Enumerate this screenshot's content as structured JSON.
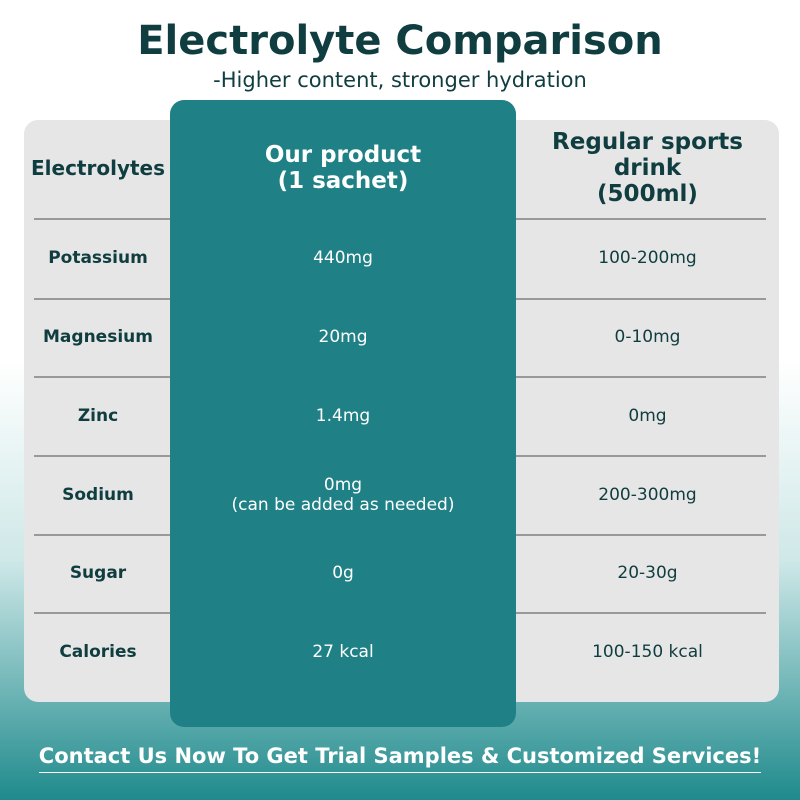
{
  "header": {
    "title": "Electrolyte Comparison",
    "subtitle": "-Higher content, stronger hydration"
  },
  "table": {
    "columns": [
      "Electrolytes",
      "Our product\n(1 sachet)",
      "Regular sports drink\n(500ml)"
    ],
    "rows": [
      [
        "Potassium",
        "440mg",
        "100-200mg"
      ],
      [
        "Magnesium",
        "20mg",
        "0-10mg"
      ],
      [
        "Zinc",
        "1.4mg",
        "0mg"
      ],
      [
        "Sodium",
        "0mg\n(can be added as needed)",
        "200-300mg"
      ],
      [
        "Sugar",
        "0g",
        "20-30g"
      ],
      [
        "Calories",
        "27 kcal",
        "100-150 kcal"
      ]
    ]
  },
  "footer": {
    "text": "Contact Us Now To Get Trial Samples & Customized Services!"
  }
}
